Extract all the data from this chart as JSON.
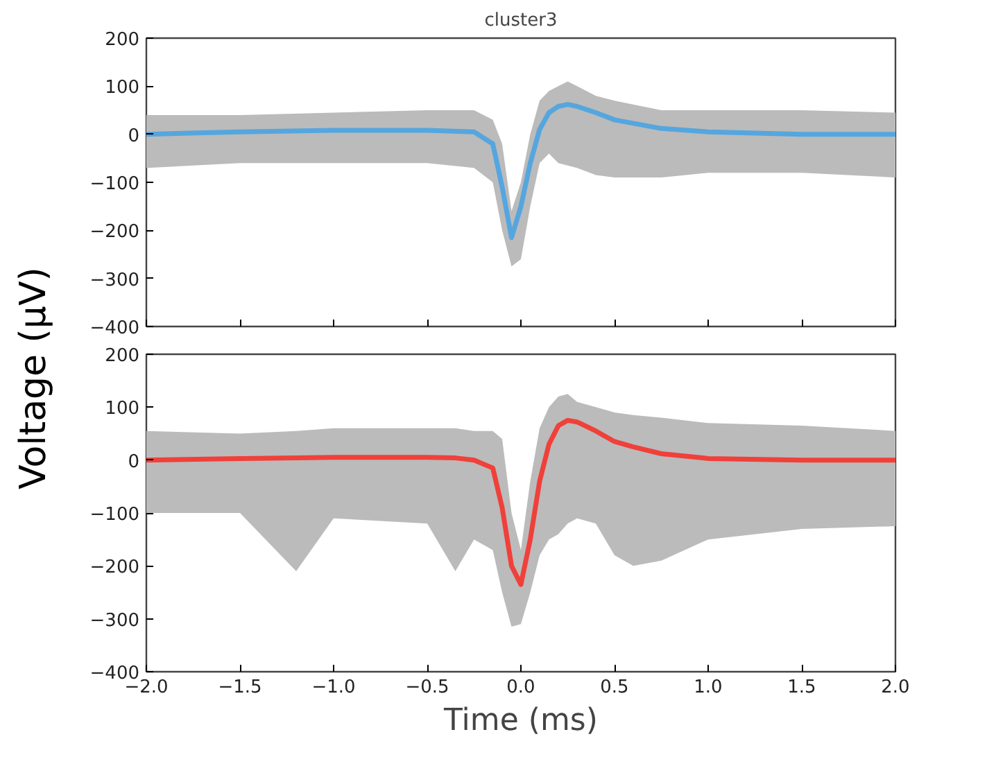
{
  "chart_data": [
    {
      "type": "line",
      "title": "cluster3",
      "ylabel": "Voltage (µV)",
      "xlim": [
        -2.0,
        2.0
      ],
      "ylim": [
        -400,
        200
      ],
      "xticks": [
        -2.0,
        -1.5,
        -1.0,
        -0.5,
        0.0,
        0.5,
        1.0,
        1.5,
        2.0
      ],
      "yticks": [
        -400,
        -300,
        -200,
        -100,
        0,
        100,
        200
      ],
      "tick_labels": "y",
      "grid": false,
      "line_style": "solid",
      "marker": "none",
      "series": [
        {
          "color": "#55a6de",
          "x": [
            -2.0,
            -1.5,
            -1.0,
            -0.5,
            -0.25,
            -0.15,
            -0.1,
            -0.05,
            0.0,
            0.05,
            0.1,
            0.15,
            0.2,
            0.25,
            0.3,
            0.4,
            0.5,
            0.75,
            1.0,
            1.5,
            2.0
          ],
          "values": [
            0,
            5,
            8,
            8,
            5,
            -20,
            -110,
            -215,
            -150,
            -60,
            10,
            45,
            58,
            62,
            58,
            45,
            30,
            12,
            5,
            0,
            0
          ],
          "lower": [
            -70,
            -60,
            -60,
            -60,
            -70,
            -100,
            -200,
            -275,
            -260,
            -150,
            -60,
            -40,
            -60,
            -65,
            -70,
            -85,
            -90,
            -90,
            -80,
            -80,
            -90
          ],
          "upper": [
            40,
            40,
            45,
            50,
            50,
            30,
            -20,
            -160,
            -100,
            0,
            70,
            90,
            100,
            110,
            100,
            80,
            70,
            50,
            50,
            50,
            45
          ]
        }
      ]
    },
    {
      "type": "line",
      "xlabel": "Time (ms)",
      "xlim": [
        -2.0,
        2.0
      ],
      "ylim": [
        -400,
        200
      ],
      "xticks": [
        {
          "value": -2,
          "label": "−2.0"
        },
        -1.5,
        {
          "value": -1,
          "label": "−1.0"
        },
        -0.5,
        {
          "value": 0,
          "label": "0.0"
        },
        0.5,
        {
          "value": 1,
          "label": "1.0"
        },
        1.5,
        {
          "value": 2,
          "label": "2.0"
        }
      ],
      "yticks": [
        -400,
        -300,
        -200,
        -100,
        0,
        100,
        200
      ],
      "grid": false,
      "line_style": "solid",
      "marker": "none",
      "series": [
        {
          "color": "#f0403a",
          "x": [
            -2.0,
            -1.5,
            -1.2,
            -1.0,
            -0.5,
            -0.35,
            -0.25,
            -0.15,
            -0.1,
            -0.05,
            0.0,
            0.05,
            0.1,
            0.15,
            0.2,
            0.25,
            0.3,
            0.4,
            0.5,
            0.6,
            0.75,
            1.0,
            1.5,
            2.0
          ],
          "values": [
            0,
            3,
            4,
            5,
            5,
            4,
            0,
            -15,
            -90,
            -200,
            -235,
            -150,
            -40,
            30,
            65,
            75,
            72,
            55,
            35,
            25,
            12,
            3,
            0,
            0
          ],
          "lower": [
            -100,
            -100,
            -210,
            -110,
            -120,
            -210,
            -150,
            -170,
            -250,
            -315,
            -310,
            -250,
            -180,
            -150,
            -140,
            -120,
            -110,
            -120,
            -180,
            -200,
            -190,
            -150,
            -130,
            -125
          ],
          "upper": [
            55,
            50,
            55,
            60,
            60,
            60,
            55,
            55,
            40,
            -100,
            -170,
            -40,
            60,
            100,
            120,
            125,
            110,
            100,
            90,
            85,
            80,
            70,
            65,
            55
          ]
        }
      ]
    }
  ]
}
